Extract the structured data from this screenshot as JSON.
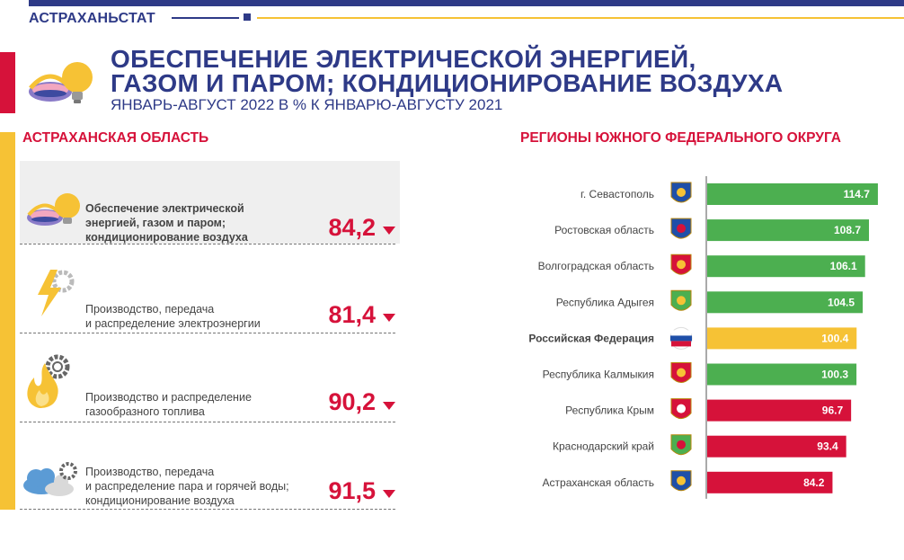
{
  "header": {
    "brand": "АСТРАХАНЬСТАТ"
  },
  "title": {
    "line1": "ОБЕСПЕЧЕНИЕ ЭЛЕКТРИЧЕСКОЙ ЭНЕРГИЕЙ,",
    "line2": "ГАЗОМ И ПАРОМ; КОНДИЦИОНИРОВАНИЕ ВОЗДУХА",
    "subtitle": "ЯНВАРЬ-АВГУСТ 2022 В % К ЯНВАРЮ-АВГУСТУ 2021"
  },
  "left_panel": {
    "heading": "АСТРАХАНСКАЯ ОБЛАСТЬ",
    "rows": [
      {
        "label_lines": [
          "Обеспечение электрической",
          "энергией, газом и паром;",
          "кондиционирование воздуха"
        ],
        "value": "84,2",
        "icon": "lightbulb-icon"
      },
      {
        "label_lines": [
          "Производство, передача",
          "и распределение электроэнергии"
        ],
        "value": "81,4",
        "icon": "lightning-gear-icon"
      },
      {
        "label_lines": [
          "Производство и распределение",
          "газообразного топлива"
        ],
        "value": "90,2",
        "icon": "flame-gear-icon"
      },
      {
        "label_lines": [
          "Производство, передача",
          "и распределение пара и горячей воды;",
          "кондиционирование воздуха"
        ],
        "value": "91,5",
        "icon": "cloud-gear-icon"
      }
    ]
  },
  "right_panel": {
    "heading": "РЕГИОНЫ ЮЖНОГО ФЕДЕРАЛЬНОГО ОКРУГА"
  },
  "colors": {
    "green": "#4caf50",
    "yellow": "#f6c235",
    "red": "#d6123a",
    "navy": "#2e3a87"
  },
  "chart_data": {
    "type": "bar",
    "orientation": "horizontal",
    "categories": [
      "г. Севастополь",
      "Ростовская область",
      "Волгоградская область",
      "Республика Адыгея",
      "Российская Федерация",
      "Республика Калмыкия",
      "Республика Крым",
      "Краснодарский край",
      "Астраханская область"
    ],
    "values": [
      114.7,
      108.7,
      106.1,
      104.5,
      100.4,
      100.3,
      96.7,
      93.4,
      84.2
    ],
    "value_labels": [
      "114.7",
      "108.7",
      "106.1",
      "104.5",
      "100.4",
      "100.3",
      "96.7",
      "93.4",
      "84.2"
    ],
    "bar_colors": [
      "#4caf50",
      "#4caf50",
      "#4caf50",
      "#4caf50",
      "#f6c235",
      "#4caf50",
      "#d6123a",
      "#d6123a",
      "#d6123a"
    ],
    "emblems": [
      "sevastopol-emblem-icon",
      "rostov-emblem-icon",
      "volgograd-emblem-icon",
      "adygea-emblem-icon",
      "russia-flag-icon",
      "kalmykia-emblem-icon",
      "crimea-emblem-icon",
      "krasnodar-emblem-icon",
      "astrakhan-emblem-icon"
    ],
    "highlight_index": 4,
    "title": "",
    "xlabel": "",
    "ylabel": ""
  }
}
